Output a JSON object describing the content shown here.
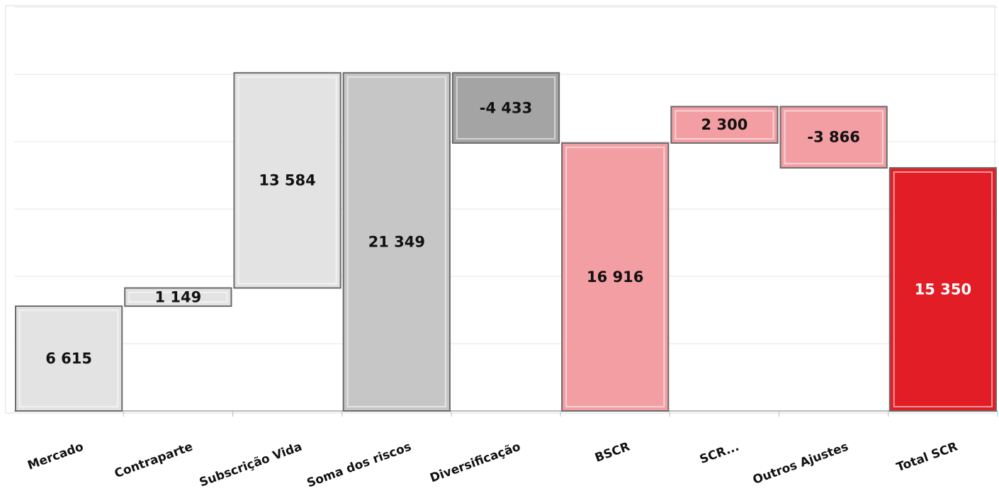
{
  "chart_data": {
    "type": "waterfall",
    "categories": [
      "Mercado",
      "Contraparte",
      "Subscrição Vida",
      "Soma dos riscos",
      "Diversificação",
      "BSCR",
      "SCR...",
      "Outros Ajustes",
      "Total SCR"
    ],
    "values": [
      6615,
      1149,
      13584,
      21349,
      -4433,
      16916,
      2300,
      -3866,
      15350
    ],
    "value_labels": [
      "6 615",
      "1 149",
      "13 584",
      "21 349",
      "-4 433",
      "16 916",
      "2 300",
      "-3 866",
      "15 350"
    ],
    "is_total": [
      false,
      false,
      false,
      true,
      false,
      true,
      false,
      false,
      true
    ],
    "colors": [
      "#e3e3e3",
      "#e3e3e3",
      "#e3e3e3",
      "#c6c6c6",
      "#a4a4a4",
      "#f29ea3",
      "#f29ea3",
      "#f29ea3",
      "#e21d25"
    ],
    "value_label_colors": [
      "#111111",
      "#111111",
      "#111111",
      "#111111",
      "#111111",
      "#111111",
      "#111111",
      "#111111",
      "#ffffff"
    ],
    "ylim": [
      0,
      25500
    ],
    "yticks": [
      0,
      4250,
      8500,
      12750,
      17000,
      21250,
      25500
    ],
    "grid": true
  }
}
